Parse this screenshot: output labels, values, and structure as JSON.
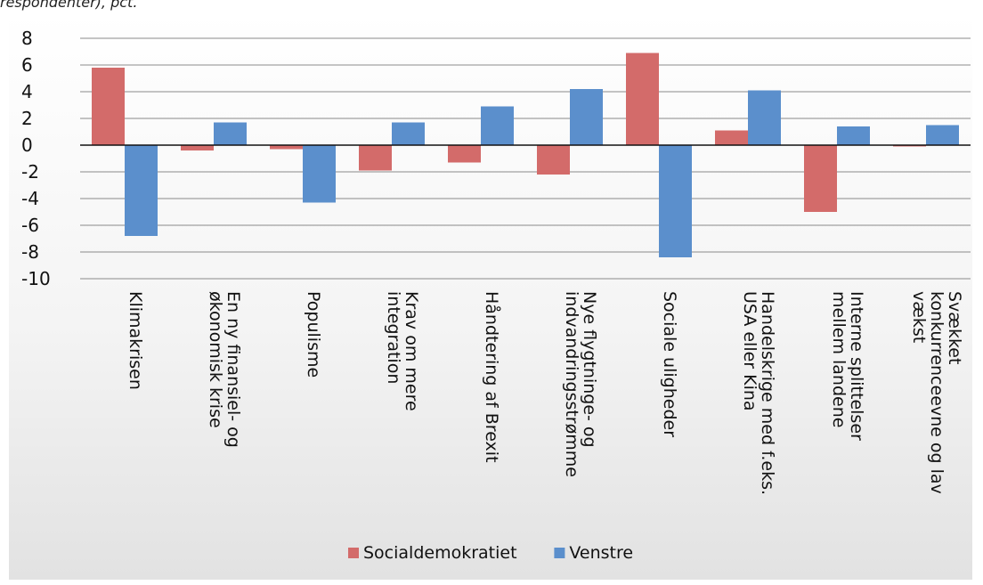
{
  "caption": "respondenter), pct.",
  "chart_data": {
    "type": "bar",
    "title": "",
    "xlabel": "",
    "ylabel": "",
    "ylim": [
      -10,
      8
    ],
    "yticks": [
      8,
      6,
      4,
      2,
      0,
      -2,
      -4,
      -6,
      -8,
      -10
    ],
    "grid": true,
    "legend_position": "bottom",
    "categories": [
      [
        "Klimakrisen"
      ],
      [
        "En ny finansiel- og",
        "økonomisk krise"
      ],
      [
        "Populisme"
      ],
      [
        "Krav om mere",
        "integration"
      ],
      [
        "Håndtering af Brexit"
      ],
      [
        "Nye flygtninge- og",
        "indvandringsstrømme"
      ],
      [
        "Sociale uligheder"
      ],
      [
        "Handelskrige med f.eks.",
        "USA eller Kina"
      ],
      [
        "Interne splittelser",
        "mellem landene"
      ],
      [
        "Svækket",
        "konkurrenceevne og lav",
        "vækst"
      ]
    ],
    "series": [
      {
        "name": "Socialdemokratiet",
        "color": "#d36b6a",
        "values": [
          5.8,
          -0.4,
          -0.3,
          -1.9,
          -1.3,
          -2.2,
          6.9,
          1.1,
          -5.0,
          -0.1
        ]
      },
      {
        "name": "Venstre",
        "color": "#5b8fcc",
        "values": [
          -6.8,
          1.7,
          -4.3,
          1.7,
          2.9,
          4.2,
          -8.4,
          4.1,
          1.4,
          1.5
        ]
      }
    ]
  }
}
